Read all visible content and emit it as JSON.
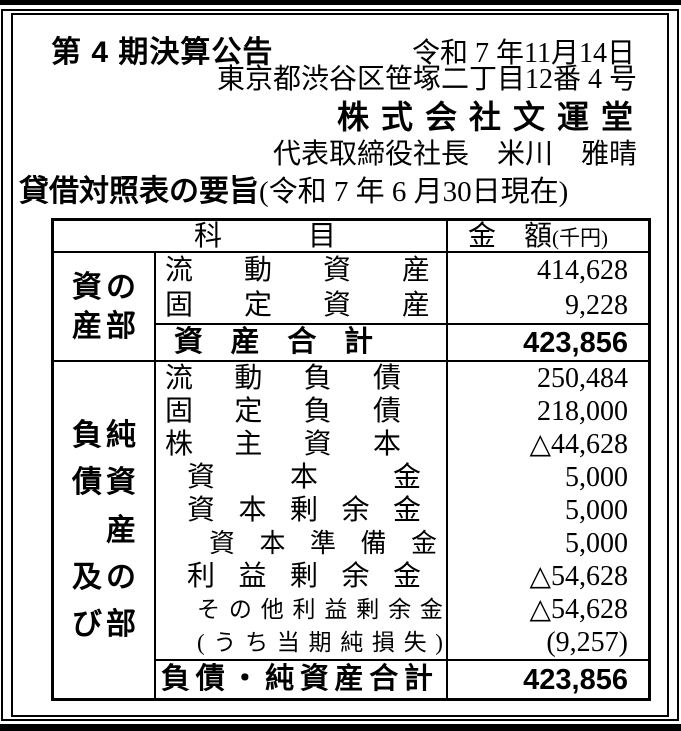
{
  "header": {
    "title": "第 4 期決算公告",
    "pub_date": "令和 7 年11月14日",
    "address": "東京都渋谷区笹塚二丁目12番 4 号",
    "company": "株式会社文運堂",
    "representative": "代表取締役社長　米川　雅晴",
    "bs_title": "貸借対照表の要旨",
    "bs_asof": "(令和 7 年 6 月30日現在)"
  },
  "table": {
    "col_subject": "科目",
    "col_amount": "金　額",
    "col_amount_unit": "(千円)",
    "assets": {
      "section_label": "資産の部",
      "label_cols": [
        [
          "資",
          "産"
        ],
        [
          "の",
          "部"
        ]
      ],
      "rows": [
        {
          "item": "流動資産",
          "amount": "414,628"
        },
        {
          "item": "固定資産",
          "amount": "9,228"
        }
      ],
      "total_label": "資産合計",
      "total_amount": "423,856"
    },
    "liabilities": {
      "section_label": "負債及び純資産の部",
      "label_cols": [
        [
          "負",
          "債",
          "",
          "及",
          "び"
        ],
        [
          "純",
          "資",
          "産",
          "の",
          "部"
        ]
      ],
      "rows": [
        {
          "item": "流動負債",
          "amount": "250,484"
        },
        {
          "item": "固定負債",
          "amount": "218,000"
        },
        {
          "item": "株主資本",
          "amount": "△44,628"
        },
        {
          "item": "資本金",
          "amount": "5,000"
        },
        {
          "item": "資本剰余金",
          "amount": "5,000"
        },
        {
          "item": "資本準備金",
          "amount": "5,000"
        },
        {
          "item": "利益剰余金",
          "amount": "△54,628"
        },
        {
          "item": "その他利益剰余金",
          "amount": "△54,628"
        },
        {
          "item": "(うち当期純損失)",
          "amount": "(9,257)"
        }
      ],
      "total_label": "負債・純資産合計",
      "total_amount": "423,856"
    }
  }
}
